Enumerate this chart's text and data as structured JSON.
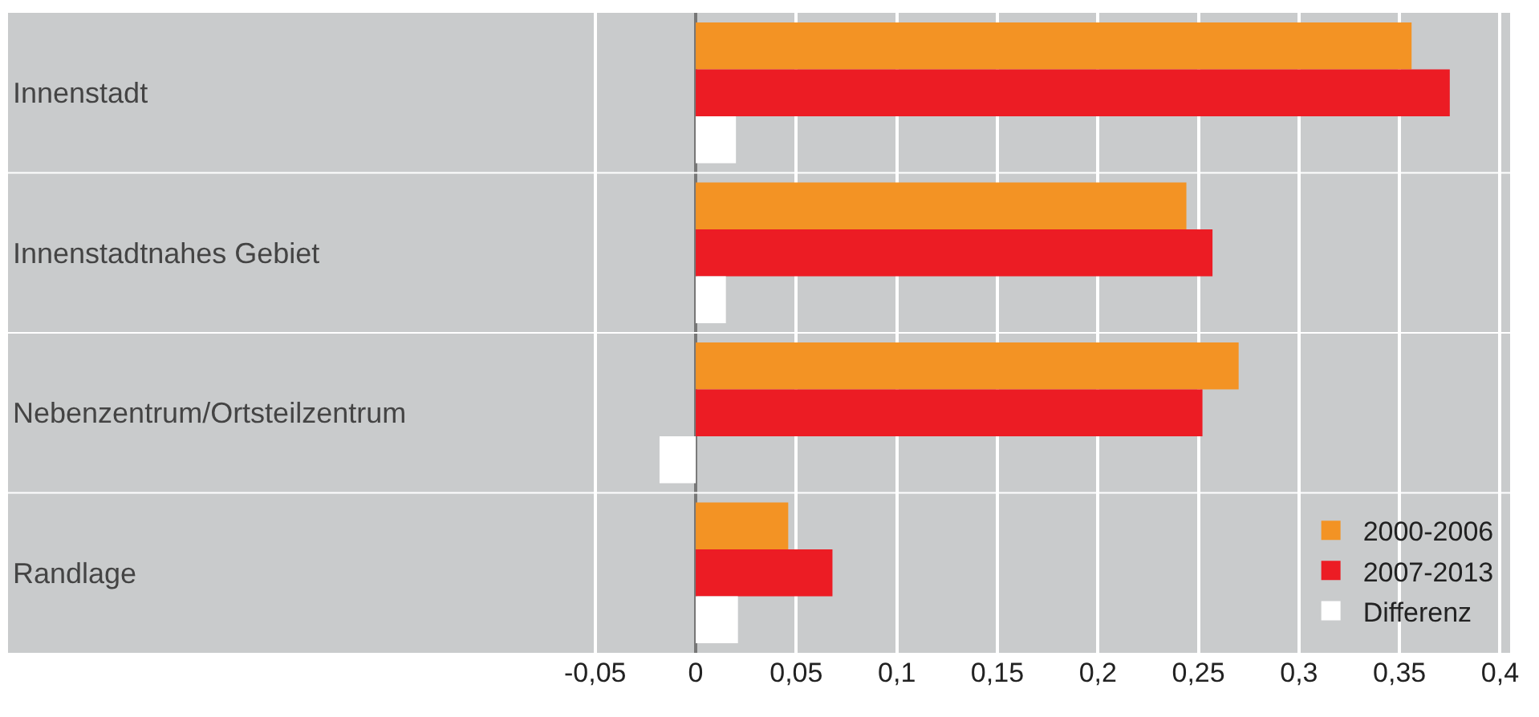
{
  "chart_data": {
    "type": "bar",
    "orientation": "horizontal",
    "categories": [
      "Innenstadt",
      "Innenstadtnahes Gebiet",
      "Nebenzentrum/Ortsteilzentrum",
      "Randlage"
    ],
    "series": [
      {
        "name": "2000-2006",
        "color": "#f39324",
        "values": [
          0.356,
          0.244,
          0.27,
          0.046
        ]
      },
      {
        "name": "2007-2013",
        "color": "#ec1c24",
        "values": [
          0.375,
          0.257,
          0.252,
          0.068
        ]
      },
      {
        "name": "Differenz",
        "color": "#ffffff",
        "values": [
          0.02,
          0.015,
          -0.018,
          0.021
        ]
      }
    ],
    "xlim": [
      -0.342,
      0.405
    ],
    "xticks": [
      {
        "value": -0.05,
        "label": "-0,05"
      },
      0,
      {
        "value": 0.05,
        "label": "0,05"
      },
      {
        "value": 0.1,
        "label": "0,1"
      },
      {
        "value": 0.15,
        "label": "0,15"
      },
      {
        "value": 0.2,
        "label": "0,2"
      },
      {
        "value": 0.25,
        "label": "0,25"
      },
      {
        "value": 0.3,
        "label": "0,3"
      },
      {
        "value": 0.35,
        "label": "0,35"
      },
      {
        "value": 0.4,
        "label": "0,4"
      }
    ],
    "grid": "x",
    "legend": "bottom right"
  }
}
